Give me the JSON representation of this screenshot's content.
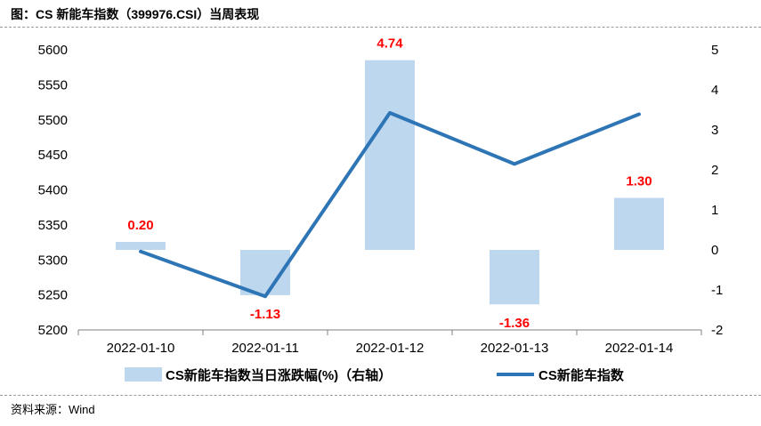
{
  "page": {
    "title": "图：CS 新能车指数（399976.CSI）当周表现",
    "source": "资料来源：Wind"
  },
  "colors": {
    "bar": "#bdd7ee",
    "line": "#2e75b6",
    "label": "#ff0000",
    "axis": "#7f7f7f"
  },
  "chart_data": {
    "type": "bar+line",
    "categories": [
      "2022-01-10",
      "2022-01-11",
      "2022-01-12",
      "2022-01-13",
      "2022-01-14"
    ],
    "series": [
      {
        "name": "CS新能车指数当日涨跌幅(%)（右轴）",
        "type": "bar",
        "axis": "right",
        "values": [
          0.2,
          -1.13,
          4.74,
          -1.36,
          1.3
        ],
        "labels": [
          "0.20",
          "-1.13",
          "4.74",
          "-1.36",
          "1.30"
        ]
      },
      {
        "name": "CS新能车指数",
        "type": "line",
        "axis": "left",
        "values": [
          5312,
          5248,
          5510,
          5437,
          5508
        ]
      }
    ],
    "y_left": {
      "min": 5200,
      "max": 5600,
      "ticks": [
        "5200",
        "5250",
        "5300",
        "5350",
        "5400",
        "5450",
        "5500",
        "5550",
        "5600"
      ]
    },
    "y_right": {
      "min": -2,
      "max": 5,
      "ticks": [
        "-2",
        "-1",
        "0",
        "1",
        "2",
        "3",
        "4",
        "5"
      ]
    },
    "legend_position": "bottom",
    "grid": false
  }
}
